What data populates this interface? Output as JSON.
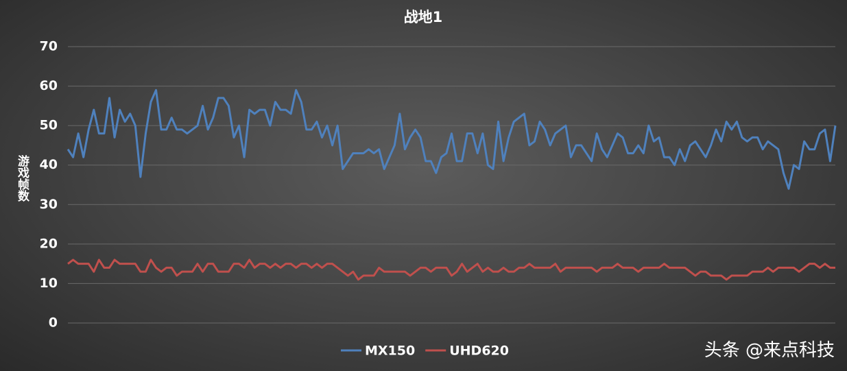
{
  "chart_data": {
    "type": "line",
    "title": "战地1",
    "y_label": "游戏帧数",
    "ylim": [
      0,
      70
    ],
    "yticks": [
      0,
      10,
      20,
      30,
      40,
      50,
      60,
      70
    ],
    "grid": true,
    "legend": "bottom",
    "series": [
      {
        "name": "MX150",
        "color": "#4f81bd",
        "values": [
          44,
          42,
          48,
          42,
          49,
          54,
          48,
          48,
          57,
          47,
          54,
          51,
          53,
          50,
          37,
          48,
          56,
          59,
          49,
          49,
          52,
          49,
          49,
          48,
          49,
          50,
          55,
          49,
          52,
          57,
          57,
          55,
          47,
          50,
          42,
          54,
          53,
          54,
          54,
          50,
          56,
          54,
          54,
          53,
          59,
          56,
          49,
          49,
          51,
          47,
          50,
          45,
          50,
          39,
          41,
          43,
          43,
          43,
          44,
          43,
          44,
          39,
          42,
          45,
          53,
          44,
          47,
          49,
          47,
          41,
          41,
          38,
          42,
          43,
          48,
          41,
          41,
          48,
          48,
          43,
          48,
          40,
          39,
          51,
          41,
          47,
          51,
          52,
          53,
          45,
          46,
          51,
          49,
          45,
          48,
          49,
          50,
          42,
          45,
          45,
          43,
          41,
          48,
          44,
          42,
          45,
          48,
          47,
          43,
          43,
          45,
          43,
          50,
          46,
          47,
          42,
          42,
          40,
          44,
          41,
          45,
          46,
          44,
          42,
          45,
          49,
          46,
          51,
          49,
          51,
          47,
          46,
          47,
          47,
          44,
          46,
          45,
          44,
          38,
          34,
          40,
          39,
          46,
          44,
          44,
          48,
          49,
          41,
          50
        ]
      },
      {
        "name": "UHD620",
        "color": "#c0504d",
        "values": [
          15,
          16,
          15,
          15,
          15,
          13,
          16,
          14,
          14,
          16,
          15,
          15,
          15,
          15,
          13,
          13,
          16,
          14,
          13,
          14,
          14,
          12,
          13,
          13,
          13,
          15,
          13,
          15,
          15,
          13,
          13,
          13,
          15,
          15,
          14,
          16,
          14,
          15,
          15,
          14,
          15,
          14,
          15,
          15,
          14,
          15,
          15,
          14,
          15,
          14,
          15,
          15,
          14,
          13,
          12,
          13,
          11,
          12,
          12,
          12,
          14,
          13,
          13,
          13,
          13,
          13,
          12,
          13,
          14,
          14,
          13,
          14,
          14,
          14,
          12,
          13,
          15,
          13,
          14,
          15,
          13,
          14,
          13,
          13,
          14,
          13,
          13,
          14,
          14,
          15,
          14,
          14,
          14,
          14,
          15,
          13,
          14,
          14,
          14,
          14,
          14,
          14,
          13,
          14,
          14,
          14,
          15,
          14,
          14,
          14,
          13,
          14,
          14,
          14,
          14,
          15,
          14,
          14,
          14,
          14,
          13,
          12,
          13,
          13,
          12,
          12,
          12,
          11,
          12,
          12,
          12,
          12,
          13,
          13,
          13,
          14,
          13,
          14,
          14,
          14,
          14,
          13,
          14,
          15,
          15,
          14,
          15,
          14,
          14
        ]
      }
    ],
    "watermark": "头条 @来点科技"
  }
}
